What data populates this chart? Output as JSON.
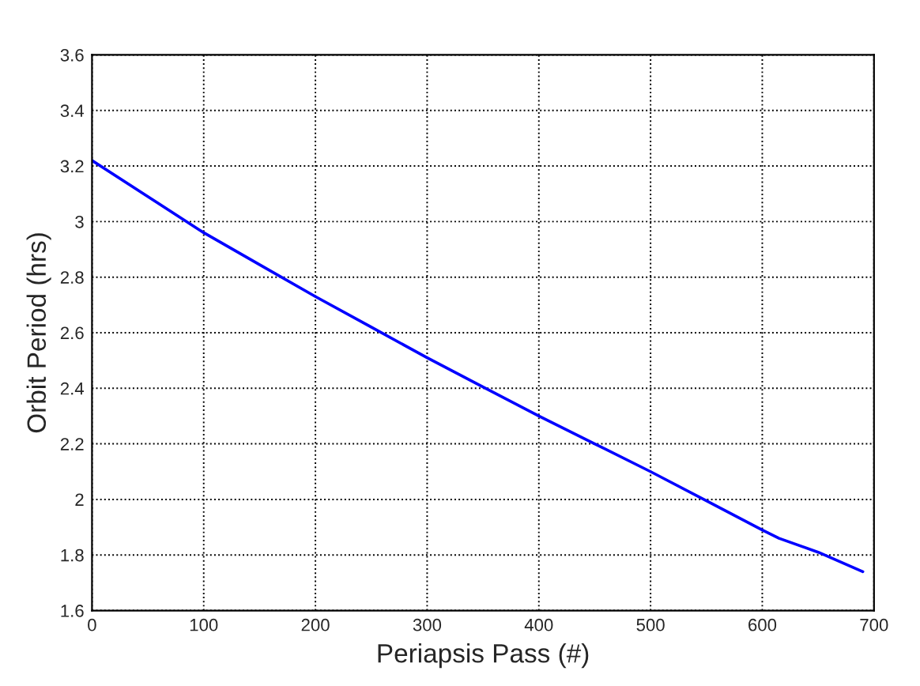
{
  "chart_data": {
    "type": "line",
    "xlabel": "Periapsis Pass (#)",
    "ylabel": "Orbit Period (hrs)",
    "x": [
      0,
      50,
      100,
      150,
      200,
      250,
      300,
      350,
      400,
      450,
      500,
      550,
      600,
      615,
      650,
      690
    ],
    "series": [
      {
        "color": "#0000ff",
        "values": [
          3.22,
          3.09,
          2.96,
          2.845,
          2.73,
          2.62,
          2.51,
          2.405,
          2.3,
          2.2,
          2.1,
          1.995,
          1.89,
          1.86,
          1.81,
          1.74
        ]
      }
    ],
    "xlim": [
      0,
      700
    ],
    "xticks": [
      0,
      100,
      200,
      300,
      400,
      500,
      600,
      700
    ],
    "ylim": [
      1.6,
      3.6
    ],
    "yticks": [
      1.6,
      1.8,
      2,
      2.2,
      2.4,
      2.6,
      2.8,
      3,
      3.2,
      3.4,
      3.6
    ],
    "grid": true,
    "line_style": "solid",
    "marker": "none"
  }
}
